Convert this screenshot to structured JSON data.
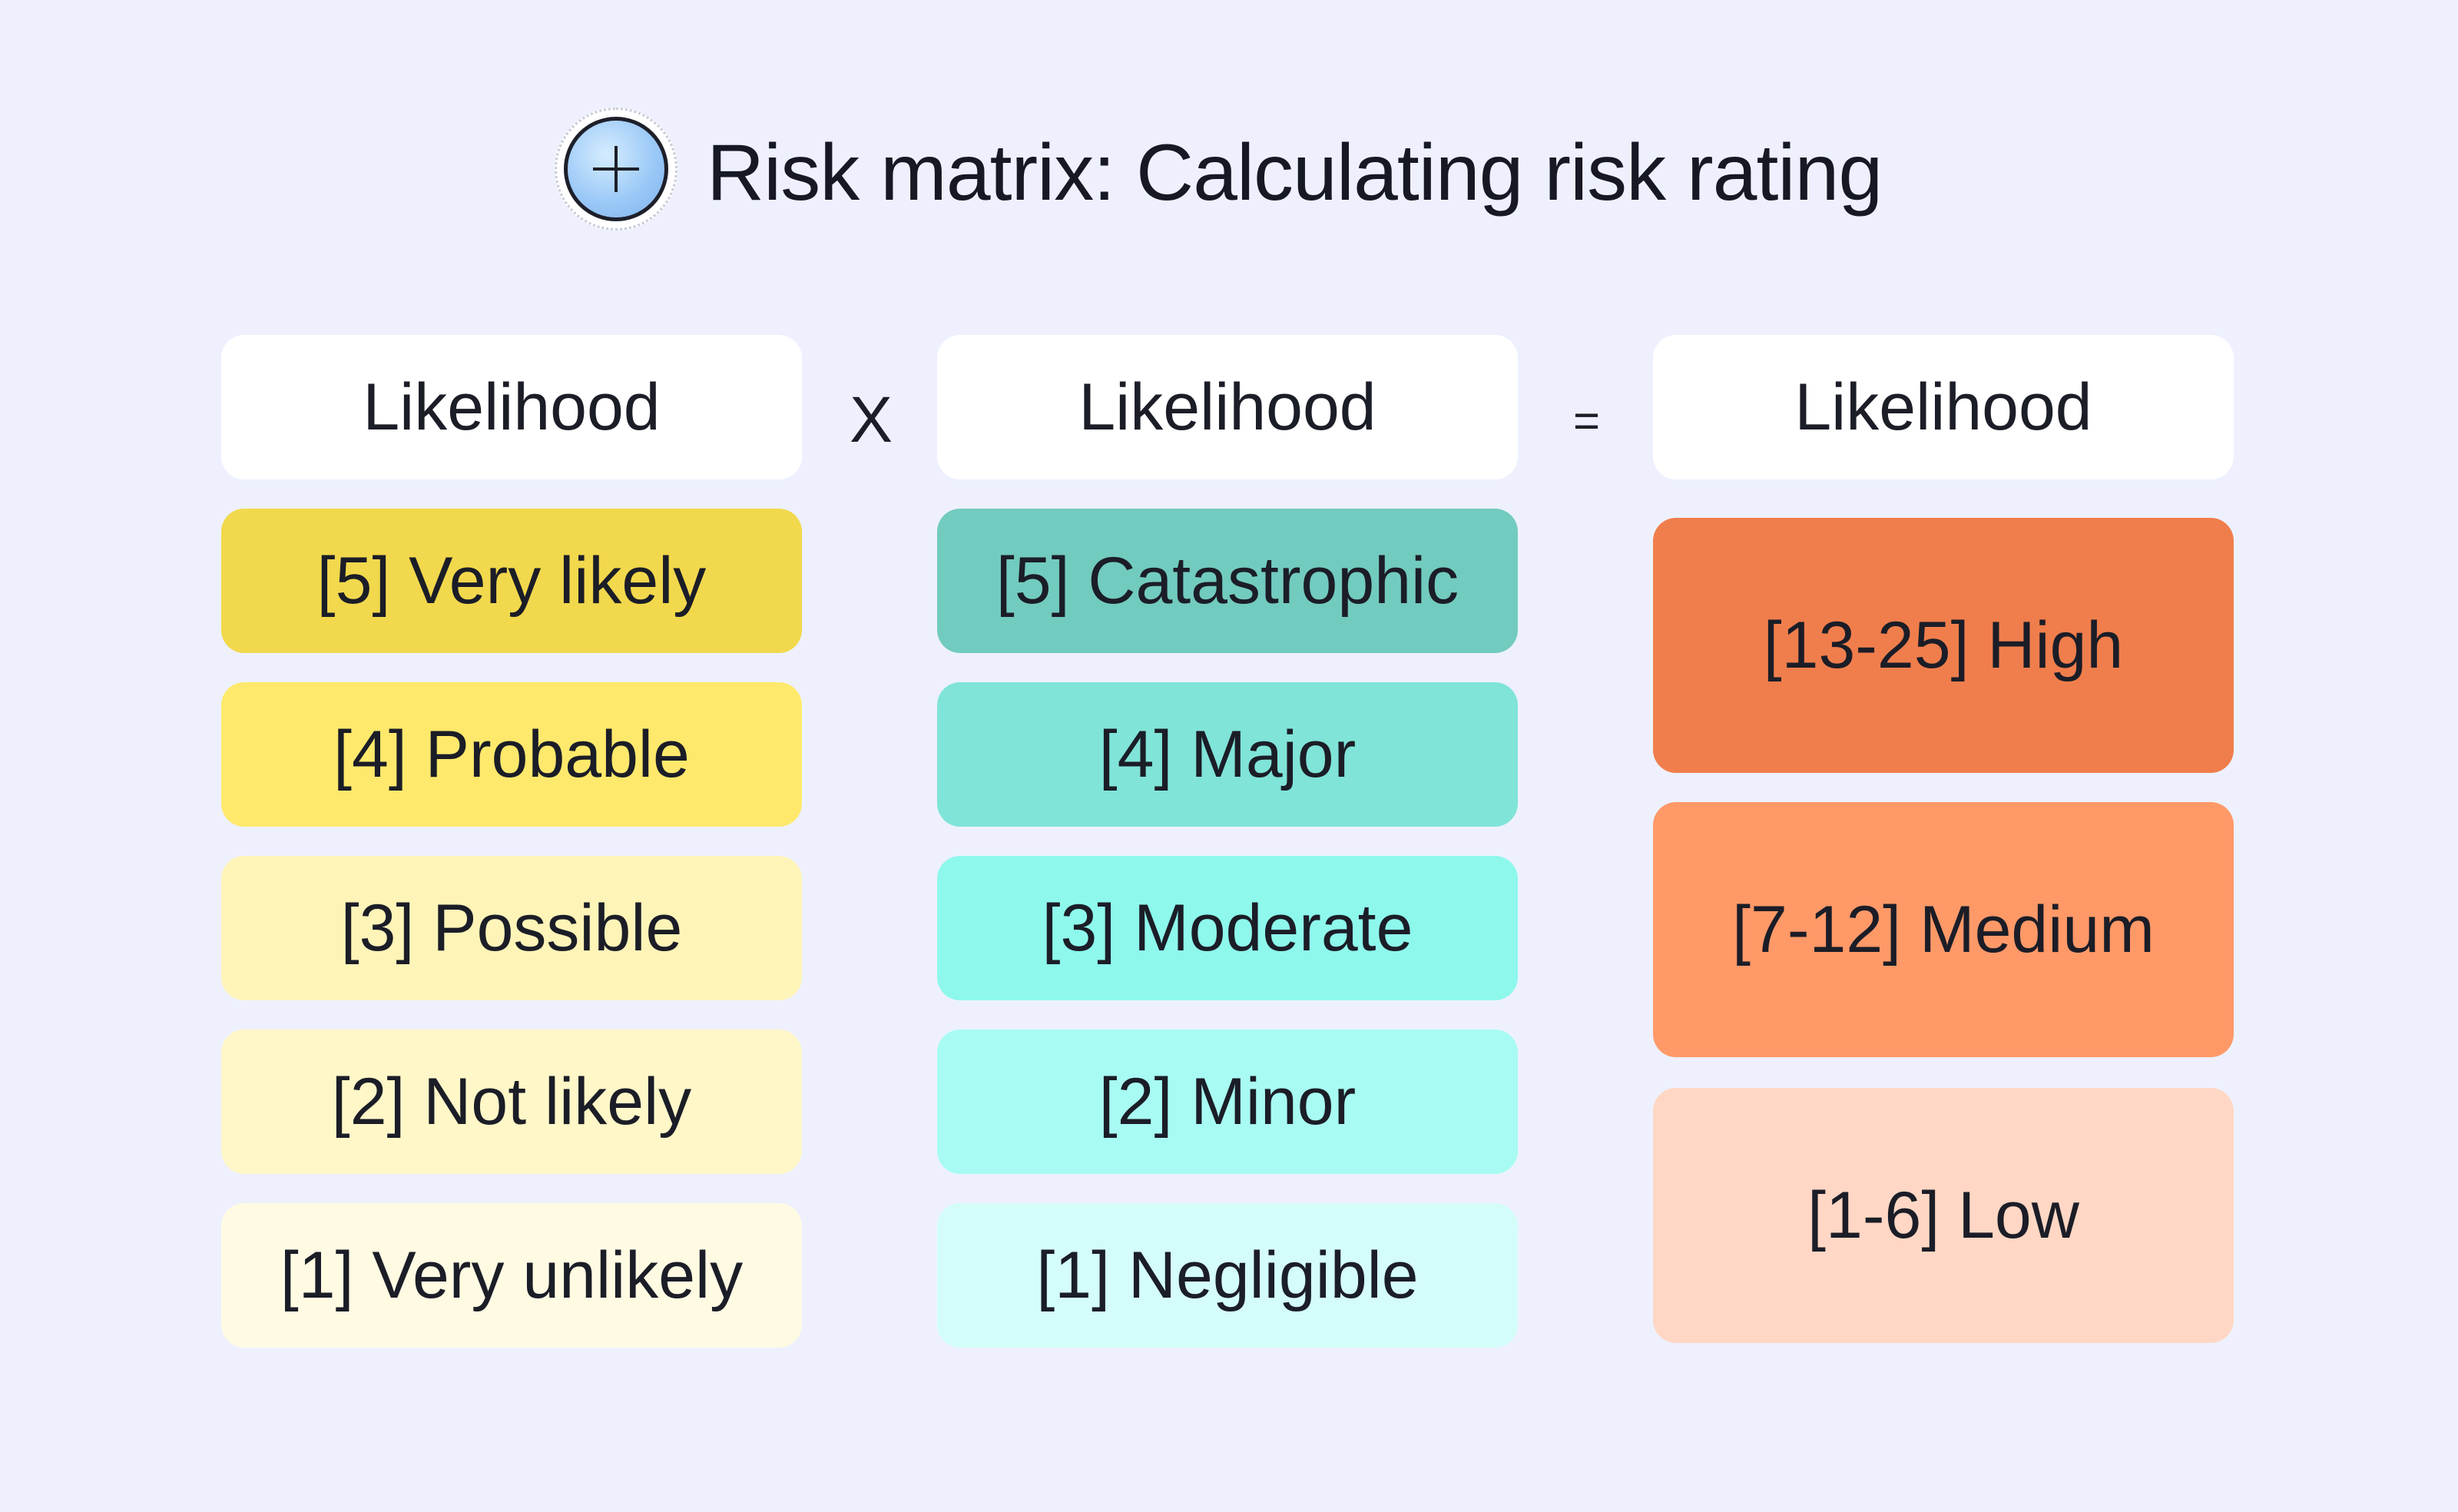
{
  "title": "Risk matrix: Calculating risk rating",
  "logo_icon": "plus-icon",
  "operators": {
    "multiply": "X",
    "equals": "="
  },
  "columns": [
    {
      "header": "Likelihood",
      "items": [
        {
          "label": "[5] Very likely",
          "color": "#f2d84c"
        },
        {
          "label": "[4] Probable",
          "color": "#ffe96c"
        },
        {
          "label": "[3] Possible",
          "color": "#fff4b8"
        },
        {
          "label": "[2] Not likely",
          "color": "#fff7c8"
        },
        {
          "label": "[1] Very unlikely",
          "color": "#fffbe3"
        }
      ]
    },
    {
      "header": "Likelihood",
      "items": [
        {
          "label": "[5] Catastrophic",
          "color": "#72cbbf"
        },
        {
          "label": "[4] Major",
          "color": "#80e4d8"
        },
        {
          "label": "[3] Moderate",
          "color": "#8ef8ec"
        },
        {
          "label": "[2] Minor",
          "color": "#a8fbf3"
        },
        {
          "label": "[1] Negligible",
          "color": "#d4fdfa"
        }
      ]
    },
    {
      "header": "Likelihood",
      "items": [
        {
          "label": "[13-25] High",
          "color": "#f07e4c"
        },
        {
          "label": "[7-12] Medium",
          "color": "#ff9968"
        },
        {
          "label": "[1-6] Low",
          "color": "#ffd7c4"
        }
      ]
    }
  ]
}
